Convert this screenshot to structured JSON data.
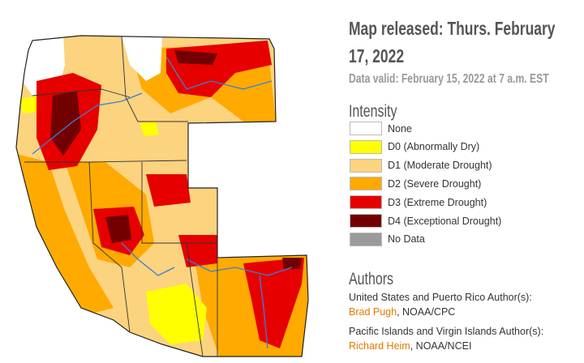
{
  "header": {
    "released": "Map released: Thurs. February 17, 2022",
    "valid": "Data valid: February 15, 2022 at 7 a.m. EST"
  },
  "legend": {
    "title": "Intensity",
    "items": [
      {
        "label": "None",
        "color": "#ffffff"
      },
      {
        "label": "D0 (Abnormally Dry)",
        "color": "#ffff00"
      },
      {
        "label": "D1 (Moderate Drought)",
        "color": "#fcd37f"
      },
      {
        "label": "D2 (Severe Drought)",
        "color": "#ffaa00"
      },
      {
        "label": "D3 (Extreme Drought)",
        "color": "#e60000"
      },
      {
        "label": "D4 (Exceptional Drought)",
        "color": "#730000"
      },
      {
        "label": "No Data",
        "color": "#9b9b9b"
      }
    ]
  },
  "authors": {
    "title": "Authors",
    "groups": [
      {
        "heading": "United States and Puerto Rico Author(s):",
        "name": "Brad Pugh",
        "affiliation": ", NOAA/CPC"
      },
      {
        "heading": "Pacific Islands and Virgin Islands Author(s):",
        "name": "Richard Heim",
        "affiliation": ", NOAA/NCEI"
      }
    ]
  }
}
